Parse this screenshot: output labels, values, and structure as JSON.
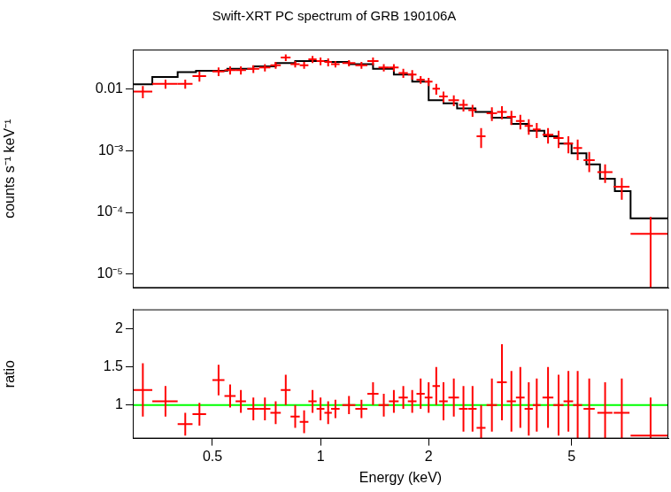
{
  "chart_data": [
    {
      "type": "scatter",
      "title": "Swift-XRT PC spectrum of GRB 190106A",
      "ylabel": "counts s⁻¹ keV⁻¹",
      "log": true,
      "grid": false,
      "tick_labels": "y",
      "xlim": [
        0.3,
        9.3
      ],
      "xticks": [
        0.5,
        1,
        2,
        5
      ],
      "ylim": [
        6e-06,
        0.043
      ],
      "yticks": [
        0.01,
        {
          "value": 0.001,
          "label": "10⁻³"
        },
        {
          "value": 0.0001,
          "label": "10⁻⁴"
        },
        {
          "value": 1e-05,
          "label": "10⁻⁵"
        }
      ],
      "series": [
        {
          "type": "scatter",
          "color": "#ff0000",
          "marker": "cross",
          "x": [
            0.32,
            0.37,
            0.42,
            0.46,
            0.52,
            0.56,
            0.6,
            0.65,
            0.7,
            0.75,
            0.8,
            0.85,
            0.9,
            0.95,
            1.0,
            1.05,
            1.1,
            1.2,
            1.3,
            1.4,
            1.5,
            1.6,
            1.7,
            1.8,
            1.9,
            2.0,
            2.1,
            2.2,
            2.35,
            2.5,
            2.65,
            2.8,
            3.0,
            3.2,
            3.4,
            3.6,
            3.8,
            4.0,
            4.3,
            4.6,
            4.9,
            5.2,
            5.6,
            6.2,
            6.9,
            8.3
          ],
          "xerr": [
            0.02,
            0.03,
            0.02,
            0.02,
            0.02,
            0.02,
            0.02,
            0.025,
            0.025,
            0.025,
            0.025,
            0.025,
            0.025,
            0.025,
            0.025,
            0.025,
            0.03,
            0.05,
            0.05,
            0.05,
            0.05,
            0.05,
            0.05,
            0.05,
            0.05,
            0.05,
            0.05,
            0.06,
            0.08,
            0.07,
            0.07,
            0.08,
            0.1,
            0.1,
            0.1,
            0.1,
            0.1,
            0.1,
            0.15,
            0.15,
            0.15,
            0.15,
            0.2,
            0.3,
            0.35,
            1.0
          ],
          "values": [
            0.009,
            0.012,
            0.012,
            0.016,
            0.019,
            0.02,
            0.02,
            0.021,
            0.022,
            0.024,
            0.032,
            0.025,
            0.024,
            0.03,
            0.028,
            0.027,
            0.025,
            0.026,
            0.024,
            0.028,
            0.022,
            0.022,
            0.018,
            0.017,
            0.014,
            0.013,
            0.01,
            0.0075,
            0.0065,
            0.0055,
            0.0045,
            0.0017,
            0.004,
            0.0042,
            0.0035,
            0.003,
            0.0025,
            0.0022,
            0.0018,
            0.0016,
            0.0013,
            0.0011,
            0.0007,
            0.00045,
            0.00026,
            4.5e-05
          ],
          "yerr": [
            0.002,
            0.002,
            0.002,
            0.003,
            0.003,
            0.003,
            0.003,
            0.003,
            0.003,
            0.003,
            0.004,
            0.003,
            0.003,
            0.004,
            0.004,
            0.004,
            0.003,
            0.003,
            0.003,
            0.004,
            0.003,
            0.003,
            0.003,
            0.003,
            0.002,
            0.002,
            0.002,
            0.0015,
            0.0013,
            0.0012,
            0.001,
            0.0006,
            0.001,
            0.001,
            0.0009,
            0.0008,
            0.0007,
            0.0006,
            0.0005,
            0.0005,
            0.0004,
            0.0004,
            0.00025,
            0.00015,
            0.0001,
            4e-05
          ]
        },
        {
          "type": "line",
          "color": "#000000",
          "line_style": "steps",
          "x": [
            0.3,
            0.34,
            0.4,
            0.45,
            0.55,
            0.65,
            0.75,
            0.85,
            0.95,
            1.05,
            1.2,
            1.4,
            1.6,
            1.8,
            2.0,
            2.2,
            2.4,
            2.7,
            3.0,
            3.4,
            3.8,
            4.2,
            4.6,
            5.0,
            5.5,
            6.0,
            6.6,
            7.3,
            8.0,
            9.3
          ],
          "values": [
            0.0078,
            0.0118,
            0.0155,
            0.0185,
            0.0195,
            0.021,
            0.023,
            0.026,
            0.028,
            0.028,
            0.027,
            0.025,
            0.021,
            0.017,
            0.013,
            0.0065,
            0.0058,
            0.0048,
            0.0042,
            0.0034,
            0.0027,
            0.0021,
            0.0017,
            0.0013,
            0.0009,
            0.0006,
            0.00035,
            0.00022,
            8e-05,
            8e-05
          ]
        }
      ]
    },
    {
      "type": "scatter",
      "xlabel": "Energy (keV)",
      "ylabel": "ratio",
      "log": "x",
      "grid": false,
      "xlim": [
        0.3,
        9.3
      ],
      "xticks": [
        0.5,
        1,
        2,
        5
      ],
      "ylim": [
        0.56,
        2.26
      ],
      "yticks": [
        1,
        1.5,
        2
      ],
      "series": [
        {
          "type": "scatter",
          "color": "#ff0000",
          "marker": "cross",
          "x": [
            0.32,
            0.37,
            0.42,
            0.46,
            0.52,
            0.56,
            0.6,
            0.65,
            0.7,
            0.75,
            0.8,
            0.85,
            0.9,
            0.95,
            1.0,
            1.05,
            1.1,
            1.2,
            1.3,
            1.4,
            1.5,
            1.6,
            1.7,
            1.8,
            1.9,
            2.0,
            2.1,
            2.2,
            2.35,
            2.5,
            2.65,
            2.8,
            3.0,
            3.2,
            3.4,
            3.6,
            3.8,
            4.0,
            4.3,
            4.6,
            4.9,
            5.2,
            5.6,
            6.2,
            6.9,
            8.3
          ],
          "xerr": [
            0.02,
            0.03,
            0.02,
            0.02,
            0.02,
            0.02,
            0.02,
            0.025,
            0.025,
            0.025,
            0.025,
            0.025,
            0.025,
            0.025,
            0.025,
            0.025,
            0.03,
            0.05,
            0.05,
            0.05,
            0.05,
            0.05,
            0.05,
            0.05,
            0.05,
            0.05,
            0.05,
            0.06,
            0.08,
            0.07,
            0.07,
            0.08,
            0.1,
            0.1,
            0.1,
            0.1,
            0.1,
            0.1,
            0.15,
            0.15,
            0.15,
            0.15,
            0.2,
            0.3,
            0.35,
            1.0
          ],
          "values": [
            1.2,
            1.05,
            0.75,
            0.88,
            1.33,
            1.12,
            1.05,
            0.95,
            0.95,
            0.9,
            1.2,
            0.85,
            0.78,
            1.05,
            0.95,
            0.9,
            0.95,
            1.0,
            0.95,
            1.15,
            1.0,
            1.05,
            1.1,
            1.05,
            1.15,
            1.1,
            1.25,
            1.05,
            1.1,
            0.95,
            0.95,
            0.7,
            1.0,
            1.3,
            1.05,
            1.1,
            0.95,
            1.0,
            1.1,
            1.0,
            1.05,
            1.0,
            0.95,
            0.9,
            0.9,
            0.6
          ],
          "yerr": [
            0.35,
            0.2,
            0.15,
            0.15,
            0.2,
            0.15,
            0.15,
            0.15,
            0.15,
            0.15,
            0.2,
            0.15,
            0.15,
            0.15,
            0.15,
            0.15,
            0.12,
            0.12,
            0.12,
            0.15,
            0.15,
            0.15,
            0.15,
            0.15,
            0.2,
            0.2,
            0.25,
            0.25,
            0.25,
            0.3,
            0.3,
            0.3,
            0.35,
            0.5,
            0.4,
            0.4,
            0.35,
            0.35,
            0.4,
            0.4,
            0.4,
            0.45,
            0.4,
            0.4,
            0.45,
            0.5
          ]
        },
        {
          "type": "line",
          "color": "#00ff00",
          "x": [
            0.3,
            9.3
          ],
          "values": [
            1,
            1
          ]
        }
      ]
    }
  ]
}
